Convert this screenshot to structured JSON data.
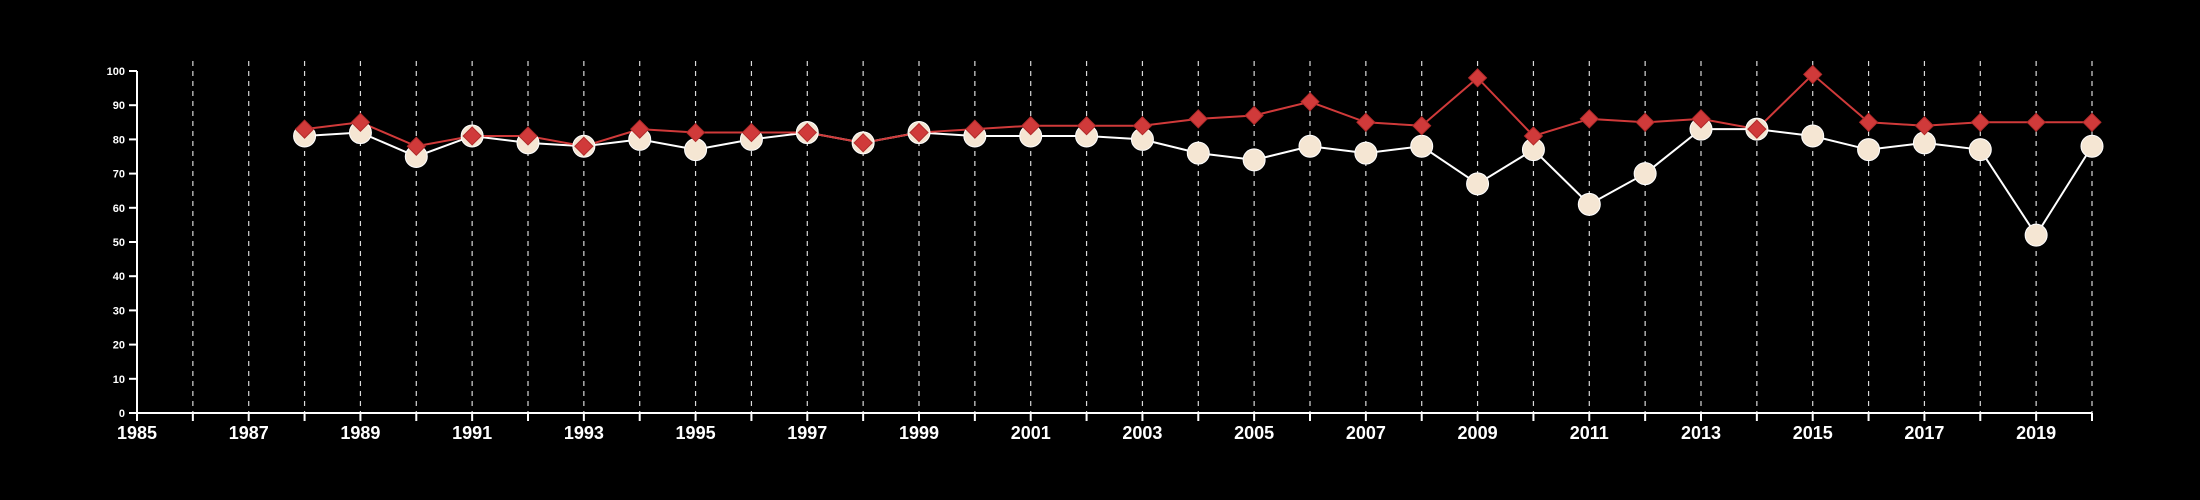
{
  "chart_data": {
    "type": "line",
    "title": "",
    "xlabel": "",
    "ylabel": "",
    "xlim": [
      1985,
      2020
    ],
    "ylim": [
      0,
      100
    ],
    "x_ticks": [
      "1985",
      "1987",
      "1989",
      "1991",
      "1993",
      "1995",
      "1997",
      "1999",
      "2001",
      "2003",
      "2005",
      "2007",
      "2009",
      "2011",
      "2013",
      "2015",
      "2017",
      "2019"
    ],
    "y_ticks": [
      "0",
      "10",
      "20",
      "30",
      "40",
      "50",
      "60",
      "70",
      "80",
      "90",
      "100"
    ],
    "grid": "vertical dashed lines at every year",
    "legend": "none",
    "x": [
      1988,
      1989,
      1990,
      1991,
      1992,
      1993,
      1994,
      1995,
      1996,
      1997,
      1998,
      1999,
      2000,
      2001,
      2002,
      2003,
      2004,
      2005,
      2006,
      2007,
      2008,
      2009,
      2010,
      2011,
      2012,
      2013,
      2014,
      2015,
      2016,
      2017,
      2018,
      2019,
      2020
    ],
    "series": [
      {
        "marker": "diamond",
        "color": "#d03a3a",
        "values": [
          83,
          85,
          78,
          81,
          81,
          78,
          83,
          82,
          82,
          82,
          79,
          82,
          83,
          84,
          84,
          84,
          86,
          87,
          91,
          85,
          84,
          98,
          81,
          86,
          85,
          86,
          83,
          99,
          85,
          84,
          85,
          85,
          85
        ]
      },
      {
        "marker": "circle",
        "color": "#f5e6d3",
        "line_color": "#ffffff",
        "values": [
          81,
          82,
          75,
          81,
          79,
          78,
          80,
          77,
          80,
          82,
          79,
          82,
          81,
          81,
          81,
          80,
          76,
          74,
          78,
          76,
          78,
          67,
          77,
          61,
          70,
          83,
          83,
          81,
          77,
          79,
          77,
          52,
          78
        ]
      }
    ]
  }
}
